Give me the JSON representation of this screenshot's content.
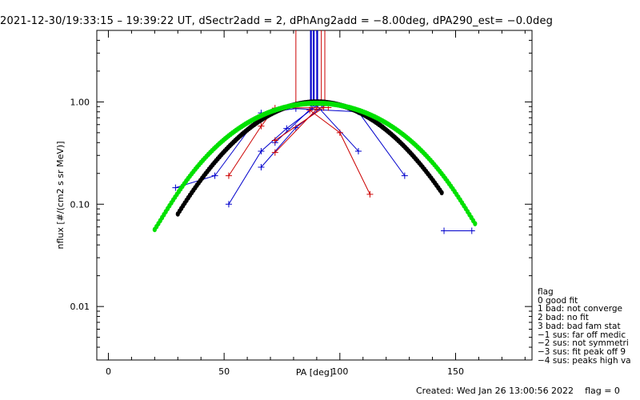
{
  "header": {
    "title": "2021-12-30/19:33:15 – 19:39:22 UT, dSectr2add = 2, dPhAng2add = −8.00deg, dPA290_est=  −0.0deg"
  },
  "legend": {
    "heading": "flag",
    "items": [
      " 0 good fit",
      " 1 bad: not converge",
      " 2 bad: no fit",
      " 3 bad: bad fam stat",
      "−1 sus: far off medic",
      "−2 sus: not symmetri",
      "−3 sus: fit peak off 9",
      "−4 sus: peaks high va"
    ]
  },
  "footer": {
    "created": "Created: Wed Jan 26 13:00:56 2022",
    "flag": "flag = 0"
  },
  "colors": {
    "blue": "#0000cc",
    "red": "#cc0000",
    "black": "#000000",
    "green": "#00e000"
  },
  "chart_data": {
    "type": "scatter",
    "xlabel": "PA [deg]",
    "ylabel": "nflux [#/(cm2 s sr MeV)]",
    "xlim": [
      -5,
      183
    ],
    "ylim": [
      0.003,
      5
    ],
    "yscale": "log",
    "x_ticks": [
      0,
      50,
      100,
      150
    ],
    "x_tick_labels": [
      "0",
      "50",
      "100",
      "150"
    ],
    "y_ticks": [
      0.01,
      0.1,
      1.0
    ],
    "y_tick_labels": [
      "0.01",
      "0.10",
      "1.00"
    ],
    "vertical_lines": [
      {
        "x": 81,
        "color": "red"
      },
      {
        "x": 87.5,
        "color": "blue"
      },
      {
        "x": 88.7,
        "color": "blue"
      },
      {
        "x": 90.2,
        "color": "blue"
      },
      {
        "x": 92,
        "color": "red"
      },
      {
        "x": 93.5,
        "color": "red"
      }
    ],
    "series": [
      {
        "color": "blue",
        "x": [
          29,
          46,
          66,
          81,
          108,
          128
        ],
        "y": [
          0.145,
          0.19,
          0.78,
          0.86,
          0.8,
          0.19
        ]
      },
      {
        "color": "blue",
        "x": [
          52,
          66,
          77,
          90,
          108
        ],
        "y": [
          0.1,
          0.33,
          0.55,
          0.92,
          0.33
        ]
      },
      {
        "color": "blue",
        "x": [
          66,
          81,
          93
        ],
        "y": [
          0.23,
          0.56,
          0.92
        ]
      },
      {
        "color": "blue",
        "x": [
          72,
          88
        ],
        "y": [
          0.4,
          0.88
        ]
      },
      {
        "color": "blue",
        "x": [
          145,
          157
        ],
        "y": [
          0.055,
          0.055
        ]
      },
      {
        "color": "red",
        "x": [
          52,
          66,
          72,
          95
        ],
        "y": [
          0.19,
          0.58,
          0.87,
          0.88
        ]
      },
      {
        "color": "red",
        "x": [
          72,
          90
        ],
        "y": [
          0.32,
          0.85
        ]
      },
      {
        "color": "red",
        "x": [
          72,
          93
        ],
        "y": [
          0.42,
          0.88
        ]
      },
      {
        "color": "red",
        "x": [
          87,
          100,
          113
        ],
        "y": [
          0.83,
          0.5,
          0.125
        ]
      }
    ],
    "fits": [
      {
        "name": "black",
        "color": "black",
        "model": "gaussian_cubic",
        "x_range": [
          30,
          144
        ],
        "peak": 1.0,
        "center": 90
      },
      {
        "name": "green",
        "color": "green",
        "model": "cos_plus_offset",
        "x_range": [
          20,
          159
        ],
        "peak": 0.97,
        "center": 90
      }
    ]
  }
}
